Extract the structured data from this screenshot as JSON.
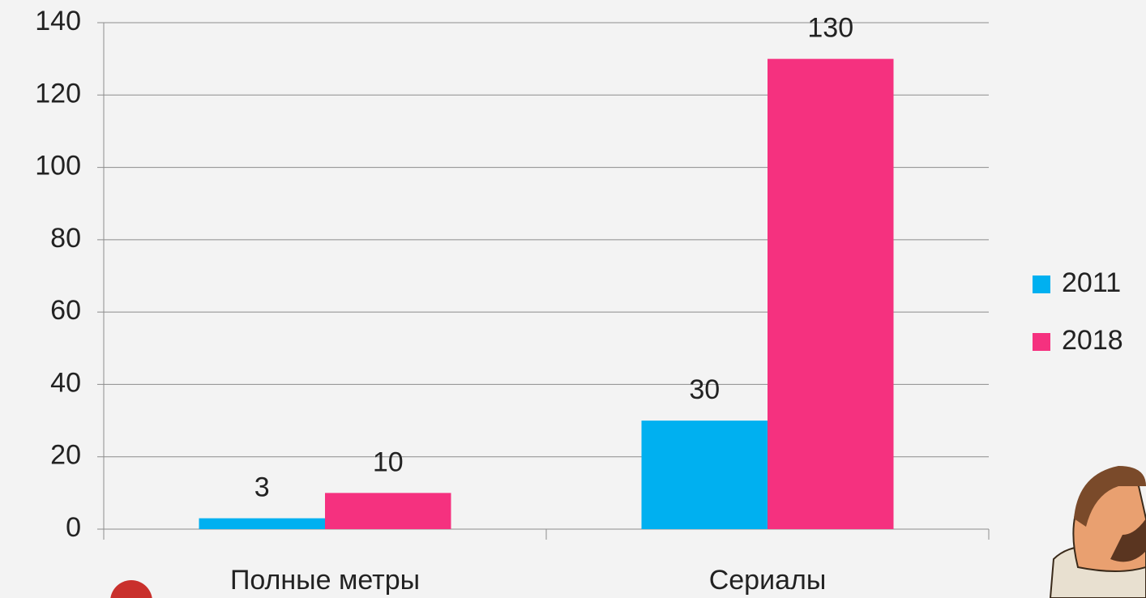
{
  "chart_data": {
    "type": "bar",
    "categories": [
      "Полные метры",
      "Сериалы"
    ],
    "series": [
      {
        "name": "2011",
        "color": "#00b0f0",
        "values": [
          3,
          30
        ]
      },
      {
        "name": "2018",
        "color": "#f5317f",
        "values": [
          10,
          130
        ]
      }
    ],
    "ylim": [
      0,
      140
    ],
    "yticks": [
      0,
      20,
      40,
      60,
      80,
      100,
      120,
      140
    ],
    "grid": true,
    "legend": "right"
  }
}
